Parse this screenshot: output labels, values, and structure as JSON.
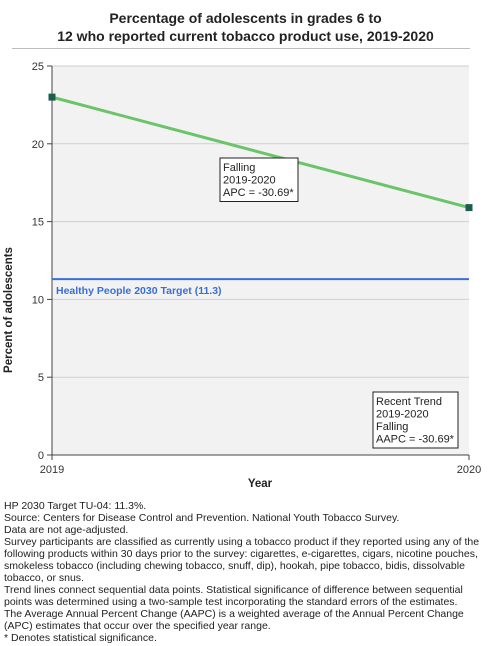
{
  "chart_data": {
    "type": "line",
    "title_line1": "Percentage of adolescents in grades 6 to",
    "title_line2": "12 who reported current tobacco product use, 2019-2020",
    "xlabel": "Year",
    "ylabel": "Percent of adolescents",
    "x": [
      2019,
      2020
    ],
    "x_tick_labels": [
      "2019",
      "2020"
    ],
    "ylim": [
      0,
      25
    ],
    "y_ticks": [
      0,
      5,
      10,
      15,
      20,
      25
    ],
    "grid": true,
    "series": [
      {
        "values": [
          23.0,
          15.9
        ],
        "color": "#6cc46a",
        "marker_color": "#1b5e4f"
      }
    ],
    "target": {
      "label": "Healthy People 2030 Target (11.3)",
      "value": 11.3,
      "color": "#3a6fd8"
    },
    "annotations": [
      {
        "id": "apc",
        "lines": [
          "Falling",
          "2019-2020",
          "APC = -30.69*"
        ]
      },
      {
        "id": "trend",
        "lines": [
          "Recent Trend",
          "2019-2020",
          "Falling",
          "AAPC = -30.69*"
        ]
      }
    ]
  },
  "footnotes": [
    "HP 2030 Target TU-04: 11.3%.",
    "Source: Centers for Disease Control and Prevention. National Youth Tobacco Survey.",
    "Data are not age-adjusted.",
    "Survey participants are classified as currently using a tobacco product if they reported using any of the following products within 30 days prior to the survey: cigarettes, e-cigarettes, cigars, nicotine pouches, smokeless tobacco (including chewing tobacco, snuff, dip), hookah, pipe tobacco, bidis, dissolvable tobacco, or snus.",
    "Trend lines connect sequential data points. Statistical significance of difference between sequential points was determined using a two-sample test incorporating the standard errors of the estimates.",
    "The Average Annual Percent Change (AAPC) is a weighted average of the Annual Percent Change (APC) estimates that occur over the specified year range.",
    "* Denotes statistical significance."
  ]
}
